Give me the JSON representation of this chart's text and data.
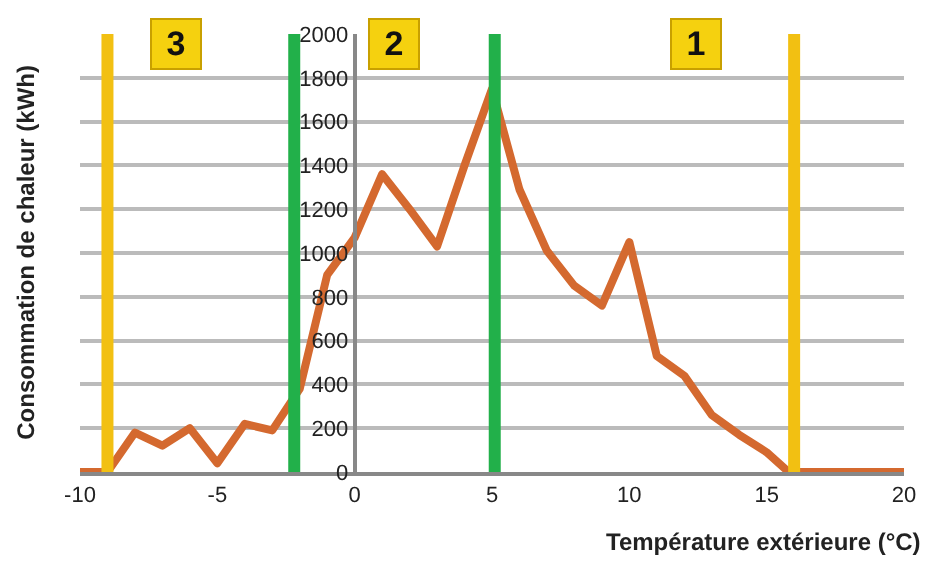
{
  "chart_data": {
    "type": "line",
    "xlabel": "Température extérieure (°C)",
    "ylabel": "Consommation de chaleur (kWh)",
    "x": [
      -10,
      -9,
      -8,
      -7,
      -6,
      -5,
      -4,
      -3,
      -2,
      -1,
      0,
      1,
      2,
      3,
      4,
      5,
      6,
      7,
      8,
      9,
      10,
      11,
      12,
      13,
      14,
      15,
      15.8,
      17,
      18,
      19,
      20
    ],
    "series": [
      {
        "color": "#d4692f",
        "values": [
          0,
          0,
          180,
          120,
          200,
          40,
          220,
          190,
          380,
          900,
          1070,
          1360,
          1200,
          1030,
          1400,
          1750,
          1290,
          1010,
          850,
          760,
          1050,
          530,
          440,
          260,
          170,
          90,
          0,
          0,
          0,
          0,
          0
        ]
      }
    ],
    "xlim": [
      -10,
      20
    ],
    "xticks": [
      -10,
      -5,
      0,
      5,
      10,
      15,
      20
    ],
    "ylim": [
      0,
      2000
    ],
    "yticks": [
      0,
      200,
      400,
      600,
      800,
      1000,
      1200,
      1400,
      1600,
      1800,
      2000
    ],
    "grid": "y",
    "marker": "none",
    "line_style": "solid",
    "ref_lines": [
      {
        "axis": "x",
        "value": -9,
        "color": "#f2c012"
      },
      {
        "axis": "x",
        "value": -2.2,
        "color": "#22b04a"
      },
      {
        "axis": "x",
        "value": 5.1,
        "color": "#22b04a"
      },
      {
        "axis": "x",
        "value": 16,
        "color": "#f2c012"
      }
    ],
    "annotations": [
      {
        "text": "3",
        "x": -6.5,
        "y": 1950
      },
      {
        "text": "2",
        "x": 1.4,
        "y": 1950
      },
      {
        "text": "1",
        "x": 12.4,
        "y": 1950
      }
    ]
  }
}
